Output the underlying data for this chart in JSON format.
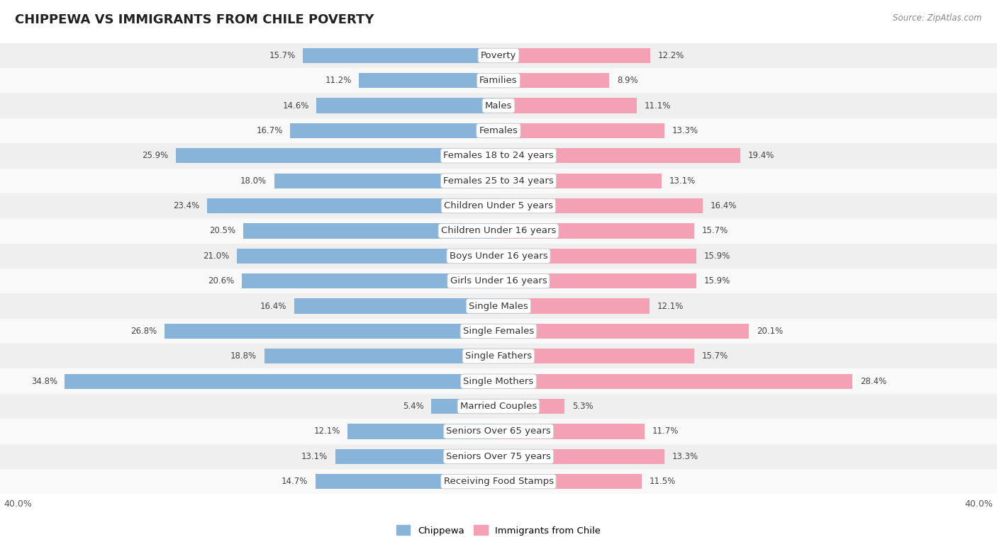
{
  "title": "CHIPPEWA VS IMMIGRANTS FROM CHILE POVERTY",
  "source": "Source: ZipAtlas.com",
  "categories": [
    "Poverty",
    "Families",
    "Males",
    "Females",
    "Females 18 to 24 years",
    "Females 25 to 34 years",
    "Children Under 5 years",
    "Children Under 16 years",
    "Boys Under 16 years",
    "Girls Under 16 years",
    "Single Males",
    "Single Females",
    "Single Fathers",
    "Single Mothers",
    "Married Couples",
    "Seniors Over 65 years",
    "Seniors Over 75 years",
    "Receiving Food Stamps"
  ],
  "chippewa": [
    15.7,
    11.2,
    14.6,
    16.7,
    25.9,
    18.0,
    23.4,
    20.5,
    21.0,
    20.6,
    16.4,
    26.8,
    18.8,
    34.8,
    5.4,
    12.1,
    13.1,
    14.7
  ],
  "immigrants": [
    12.2,
    8.9,
    11.1,
    13.3,
    19.4,
    13.1,
    16.4,
    15.7,
    15.9,
    15.9,
    12.1,
    20.1,
    15.7,
    28.4,
    5.3,
    11.7,
    13.3,
    11.5
  ],
  "chippewa_color": "#89b4d9",
  "immigrants_color": "#f4a0b5",
  "row_bg_even": "#efefef",
  "row_bg_odd": "#f9f9f9",
  "axis_max": 40.0,
  "bar_height": 0.6,
  "label_fontsize": 9.5,
  "title_fontsize": 13,
  "value_fontsize": 8.5
}
